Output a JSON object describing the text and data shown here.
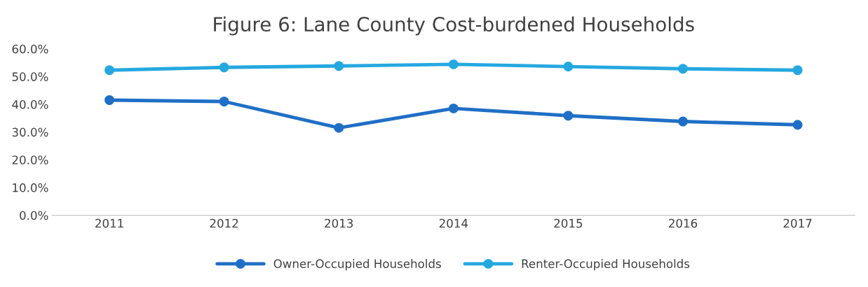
{
  "chart_data": {
    "type": "line",
    "title": "Figure 6: Lane County Cost-burdened Households",
    "categories": [
      "2011",
      "2012",
      "2013",
      "2014",
      "2015",
      "2016",
      "2017"
    ],
    "series": [
      {
        "name": "Owner-Occupied Households",
        "color": "#1f6fc6",
        "values": [
          41.5,
          41.0,
          31.5,
          38.5,
          35.9,
          33.8,
          32.6
        ]
      },
      {
        "name": "Renter-Occupied Households",
        "color": "#25a8e0",
        "values": [
          52.3,
          53.3,
          53.8,
          54.4,
          53.6,
          52.8,
          52.3
        ]
      }
    ],
    "ylim": [
      0,
      60
    ],
    "yticks": [
      {
        "value": 0,
        "label": "0.0%"
      },
      {
        "value": 10,
        "label": "10.0%"
      },
      {
        "value": 20,
        "label": "20.0%"
      },
      {
        "value": 30,
        "label": "30.0%"
      },
      {
        "value": 40,
        "label": "40.0%"
      },
      {
        "value": 50,
        "label": "50.0%"
      },
      {
        "value": 60,
        "label": "60.0%"
      }
    ],
    "grid": false,
    "legend": "bottom",
    "marker": "circle",
    "line_style": "solid"
  }
}
